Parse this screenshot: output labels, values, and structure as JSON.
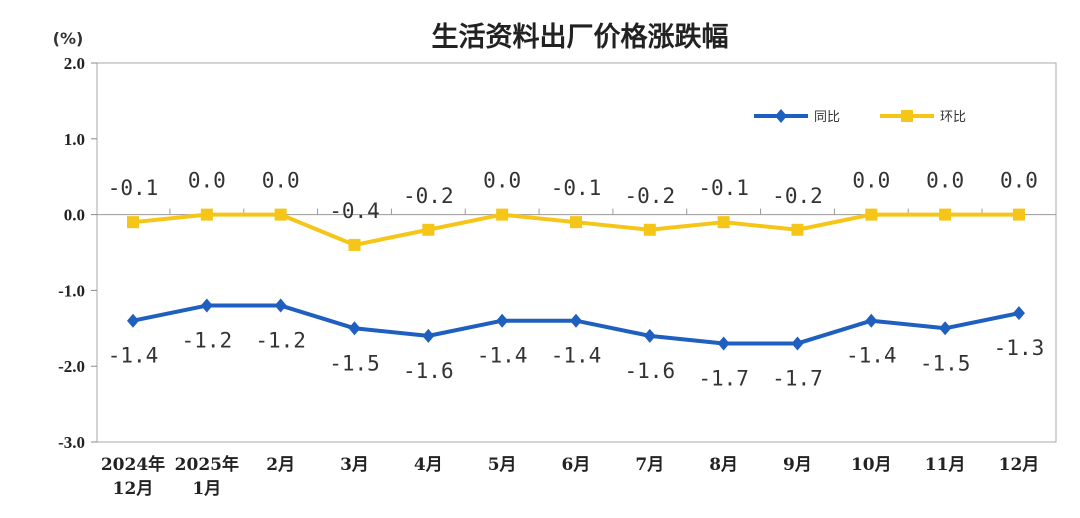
{
  "chart_data": {
    "type": "line",
    "title": "生活资料出厂价格涨跌幅",
    "unit_label": "(%)",
    "ylim": [
      -3.0,
      2.0
    ],
    "y_ticks": [
      "2.0",
      "1.0",
      "0.0",
      "-1.0",
      "-2.0",
      "-3.0"
    ],
    "categories": [
      [
        "2024年",
        "12月"
      ],
      [
        "2025年",
        "1月"
      ],
      [
        "2月"
      ],
      [
        "3月"
      ],
      [
        "4月"
      ],
      [
        "5月"
      ],
      [
        "6月"
      ],
      [
        "7月"
      ],
      [
        "8月"
      ],
      [
        "9月"
      ],
      [
        "10月"
      ],
      [
        "11月"
      ],
      [
        "12月"
      ]
    ],
    "series": [
      {
        "name": "同比",
        "color": "#1f5fbf",
        "marker": "diamond",
        "values": [
          -1.4,
          -1.2,
          -1.2,
          -1.5,
          -1.6,
          -1.4,
          -1.4,
          -1.6,
          -1.7,
          -1.7,
          -1.4,
          -1.5,
          -1.3
        ],
        "labels": [
          "-1.4",
          "-1.2",
          "-1.2",
          "-1.5",
          "-1.6",
          "-1.4",
          "-1.4",
          "-1.6",
          "-1.7",
          "-1.7",
          "-1.4",
          "-1.5",
          "-1.3"
        ]
      },
      {
        "name": "环比",
        "color": "#f5c518",
        "marker": "square",
        "values": [
          -0.1,
          0.0,
          0.0,
          -0.4,
          -0.2,
          0.0,
          -0.1,
          -0.2,
          -0.1,
          -0.2,
          0.0,
          0.0,
          0.0
        ],
        "labels": [
          "-0.1",
          "0.0",
          "0.0",
          "-0.4",
          "-0.2",
          "0.0",
          "-0.1",
          "-0.2",
          "-0.1",
          "-0.2",
          "0.0",
          "0.0",
          "0.0"
        ]
      }
    ],
    "legend_position": "top-right",
    "zero_line": true
  }
}
